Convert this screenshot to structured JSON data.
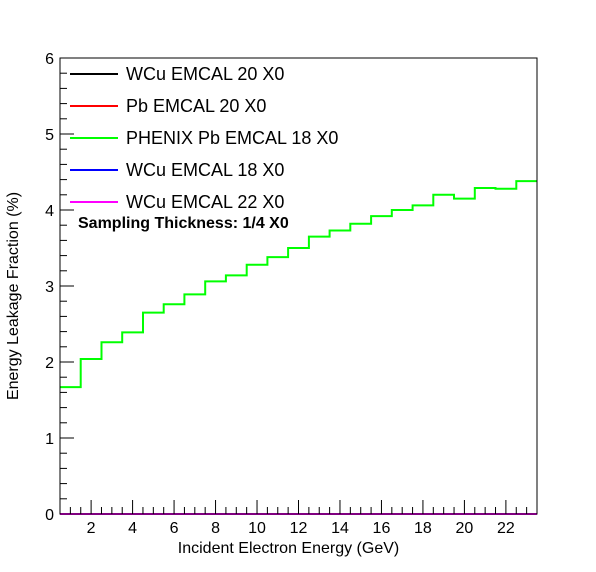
{
  "chart_data": {
    "type": "line",
    "style": "step-histogram",
    "xlabel": "Incident Electron Energy (GeV)",
    "ylabel": "Energy Leakage Fraction (%)",
    "xlim": [
      0.5,
      23.5
    ],
    "ylim": [
      0,
      6
    ],
    "x_ticks": [
      2,
      4,
      6,
      8,
      10,
      12,
      14,
      16,
      18,
      20,
      22
    ],
    "y_ticks": [
      0,
      1,
      2,
      3,
      4,
      5,
      6
    ],
    "bin_edges": [
      0.5,
      1.5,
      2.5,
      3.5,
      4.5,
      5.5,
      6.5,
      7.5,
      8.5,
      9.5,
      10.5,
      11.5,
      12.5,
      13.5,
      14.5,
      15.5,
      16.5,
      17.5,
      18.5,
      19.5,
      20.5,
      21.5,
      22.5,
      23.5
    ],
    "annotation": "Sampling Thickness: 1/4 X0",
    "legend_position": "top-left",
    "series": [
      {
        "name": "WCu EMCAL 20 X0",
        "color": "#000000",
        "values": [
          0,
          0,
          0,
          0,
          0,
          0,
          0,
          0,
          0,
          0,
          0,
          0,
          0,
          0,
          0,
          0,
          0,
          0,
          0,
          0,
          0,
          0,
          0
        ]
      },
      {
        "name": "Pb EMCAL 20 X0",
        "color": "#ff0000",
        "values": [
          0,
          0,
          0,
          0,
          0,
          0,
          0,
          0,
          0,
          0,
          0,
          0,
          0,
          0,
          0,
          0,
          0,
          0,
          0,
          0,
          0,
          0,
          0
        ]
      },
      {
        "name": "PHENIX Pb EMCAL 18 X0",
        "color": "#00ff00",
        "values": [
          1.67,
          2.04,
          2.26,
          2.39,
          2.65,
          2.76,
          2.89,
          3.06,
          3.14,
          3.28,
          3.38,
          3.5,
          3.65,
          3.73,
          3.82,
          3.92,
          4.0,
          4.06,
          4.2,
          4.15,
          4.29,
          4.28,
          4.38
        ]
      },
      {
        "name": "WCu EMCAL 18 X0",
        "color": "#0000ff",
        "values": [
          0,
          0,
          0,
          0,
          0,
          0,
          0,
          0,
          0,
          0,
          0,
          0,
          0,
          0,
          0,
          0,
          0,
          0,
          0,
          0,
          0,
          0,
          0
        ]
      },
      {
        "name": "WCu EMCAL 22 X0",
        "color": "#ff00ff",
        "values": [
          0,
          0,
          0,
          0,
          0,
          0,
          0,
          0,
          0,
          0,
          0,
          0,
          0,
          0,
          0,
          0,
          0,
          0,
          0,
          0,
          0,
          0,
          0
        ]
      }
    ]
  }
}
